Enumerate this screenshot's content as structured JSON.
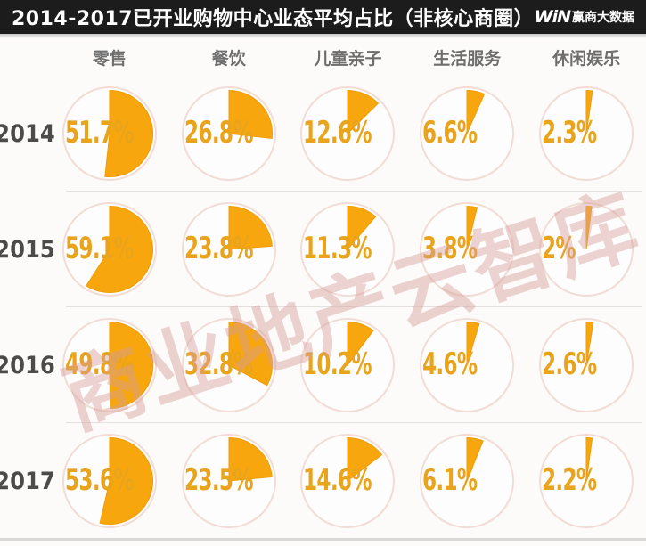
{
  "header": {
    "title": "2014-2017已开业购物中心业态平均占比（非核心商圈）",
    "logo_mark": "WiN",
    "logo_text": "赢商大数据"
  },
  "watermark": {
    "text": "商业地产云智库"
  },
  "colors": {
    "accent_orange": "#f8a60e",
    "wedge_stroke": "#ee9d07",
    "ring": "#f1dcd6",
    "circle_fill": "#fefdfd",
    "percent_text": "#e9a41d",
    "header_bg": "#1d1c1c"
  },
  "chart_data": {
    "type": "pie",
    "title": "2014-2017已开业购物中心业态平均占比（非核心商圈）",
    "subtitle": "",
    "categories": [
      "零售",
      "餐饮",
      "儿童亲子",
      "生活服务",
      "休闲娱乐"
    ],
    "rows": [
      {
        "year": "2014",
        "values": [
          51.7,
          26.8,
          12.6,
          6.6,
          2.3
        ],
        "labels": [
          "51.7%",
          "26.8%",
          "12.6%",
          "6.6%",
          "2.3%"
        ]
      },
      {
        "year": "2015",
        "values": [
          59.1,
          23.8,
          11.3,
          3.8,
          2.0
        ],
        "labels": [
          "59.1%",
          "23.8%",
          "11.3%",
          "3.8%",
          "2%"
        ]
      },
      {
        "year": "2016",
        "values": [
          49.8,
          32.8,
          10.2,
          4.6,
          2.6
        ],
        "labels": [
          "49.8%",
          "32.8%",
          "10.2%",
          "4.6%",
          "2.6%"
        ]
      },
      {
        "year": "2017",
        "values": [
          53.6,
          23.5,
          14.6,
          6.1,
          2.2
        ],
        "labels": [
          "53.6%",
          "23.5%",
          "14.6%",
          "6.1%",
          "2.2%"
        ]
      }
    ],
    "value_unit": "%",
    "pie_start": "12-o'clock",
    "pie_direction": "clockwise",
    "legend_position": "none",
    "grid": "off"
  }
}
